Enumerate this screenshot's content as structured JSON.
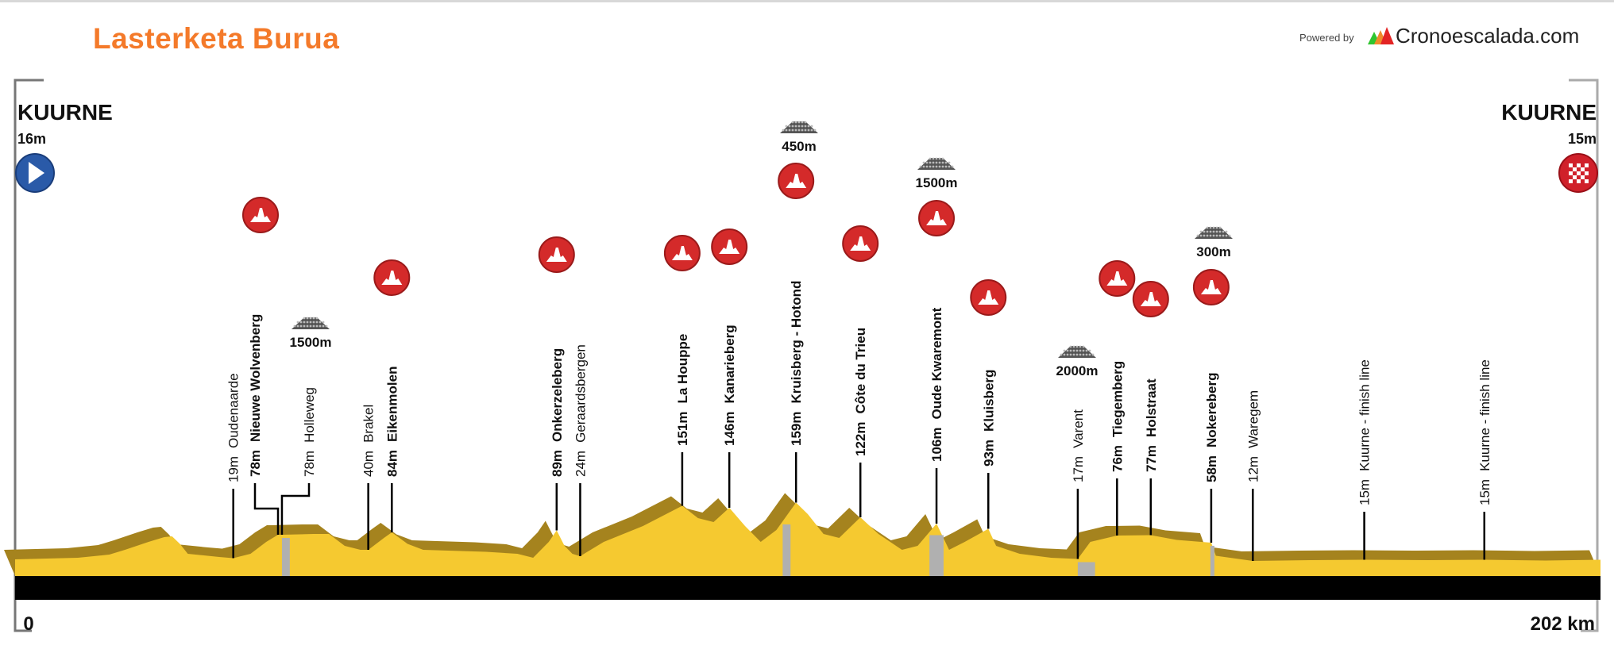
{
  "header": {
    "title": "Lasterketa Burua",
    "powered_by": "Powered by",
    "brand": "Cronoescalada.com",
    "title_color": "#f47a2a"
  },
  "start": {
    "name": "KUURNE",
    "elevation": "16m",
    "icon": "start-play-icon",
    "color": "#2a5aa8"
  },
  "finish": {
    "name": "KUURNE",
    "elevation": "15m",
    "icon": "finish-checkered-icon",
    "color": "#d0202a"
  },
  "axis": {
    "start_label": "0",
    "end_label": "202 km"
  },
  "colors": {
    "terrain": "#f5c930",
    "terrain_shadow": "#a5831e",
    "cobbles": "#b0b0b0",
    "road": "#000000",
    "climb_icon": "#d42a2a"
  },
  "chart_data": {
    "type": "area",
    "xlabel": "",
    "ylabel": "",
    "xlim": [
      0,
      202
    ],
    "x_unit": "km",
    "y_unit": "m",
    "profile": [
      [
        0,
        16
      ],
      [
        8,
        20
      ],
      [
        12,
        28
      ],
      [
        14,
        40
      ],
      [
        17,
        60
      ],
      [
        19,
        72
      ],
      [
        20,
        74
      ],
      [
        21,
        55
      ],
      [
        22,
        30
      ],
      [
        26,
        22
      ],
      [
        27.8,
        19
      ],
      [
        30,
        30
      ],
      [
        32,
        60
      ],
      [
        33.5,
        78
      ],
      [
        34,
        78
      ],
      [
        38,
        80
      ],
      [
        40,
        80
      ],
      [
        42,
        50
      ],
      [
        44,
        40
      ],
      [
        45,
        40
      ],
      [
        47,
        70
      ],
      [
        48,
        84
      ],
      [
        50,
        55
      ],
      [
        52,
        40
      ],
      [
        60,
        35
      ],
      [
        64,
        30
      ],
      [
        66,
        20
      ],
      [
        68,
        60
      ],
      [
        69,
        89
      ],
      [
        70,
        50
      ],
      [
        71,
        30
      ],
      [
        72,
        24
      ],
      [
        75,
        60
      ],
      [
        80,
        100
      ],
      [
        85,
        151
      ],
      [
        87,
        120
      ],
      [
        89,
        110
      ],
      [
        91,
        146
      ],
      [
        93,
        100
      ],
      [
        95,
        60
      ],
      [
        97,
        90
      ],
      [
        99.5,
        159
      ],
      [
        101,
        130
      ],
      [
        103,
        80
      ],
      [
        105,
        70
      ],
      [
        107.7,
        122
      ],
      [
        110,
        80
      ],
      [
        113,
        40
      ],
      [
        115,
        50
      ],
      [
        117.4,
        106
      ],
      [
        119,
        40
      ],
      [
        121,
        60
      ],
      [
        124,
        93
      ],
      [
        125,
        50
      ],
      [
        128,
        30
      ],
      [
        132,
        20
      ],
      [
        135.4,
        17
      ],
      [
        137,
        60
      ],
      [
        140.4,
        76
      ],
      [
        144.7,
        77
      ],
      [
        148,
        65
      ],
      [
        152.4,
        58
      ],
      [
        153,
        25
      ],
      [
        157.7,
        12
      ],
      [
        165,
        14
      ],
      [
        171.9,
        15
      ],
      [
        180,
        14
      ],
      [
        187.2,
        15
      ],
      [
        195,
        13
      ],
      [
        202,
        15
      ]
    ],
    "points": [
      {
        "km": 27.8,
        "elevation": "19m",
        "name": "Oudenaarde",
        "type": "town"
      },
      {
        "km": 33.5,
        "elevation": "78m",
        "name": "Nieuwe Wolvenberg",
        "type": "climb"
      },
      {
        "km": 34,
        "elevation": "78m",
        "name": "Holleweg",
        "type": "cobbles",
        "cobble_length": "1500m"
      },
      {
        "km": 45,
        "elevation": "40m",
        "name": "Brakel",
        "type": "town"
      },
      {
        "km": 48,
        "elevation": "84m",
        "name": "Eikenmolen",
        "type": "climb"
      },
      {
        "km": 69,
        "elevation": "89m",
        "name": "Onkerzeleberg",
        "type": "climb"
      },
      {
        "km": 72,
        "elevation": "24m",
        "name": "Geraardsbergen",
        "type": "town"
      },
      {
        "km": 85,
        "elevation": "151m",
        "name": "La Houppe",
        "type": "climb"
      },
      {
        "km": 91,
        "elevation": "146m",
        "name": "Kanarieberg",
        "type": "climb"
      },
      {
        "km": 99.5,
        "elevation": "159m",
        "name": "Kruisberg - Hotond",
        "type": "climb",
        "cobble_length": "450m"
      },
      {
        "km": 107.7,
        "elevation": "122m",
        "name": "Côte du Trieu",
        "type": "climb"
      },
      {
        "km": 117.4,
        "elevation": "106m",
        "name": "Oude Kwaremont",
        "type": "climb",
        "cobble_length": "1500m"
      },
      {
        "km": 124,
        "elevation": "93m",
        "name": "Kluisberg",
        "type": "climb"
      },
      {
        "km": 135.4,
        "elevation": "17m",
        "name": "Varent",
        "type": "cobbles",
        "cobble_length": "2000m"
      },
      {
        "km": 140.4,
        "elevation": "76m",
        "name": "Tiegemberg",
        "type": "climb"
      },
      {
        "km": 144.7,
        "elevation": "77m",
        "name": "Holstraat",
        "type": "climb"
      },
      {
        "km": 152.4,
        "elevation": "58m",
        "name": "Nokereberg",
        "type": "climb",
        "cobble_length": "300m"
      },
      {
        "km": 157.7,
        "elevation": "12m",
        "name": "Waregem",
        "type": "town"
      },
      {
        "km": 171.9,
        "elevation": "15m",
        "name": "Kuurne - finish line",
        "type": "town"
      },
      {
        "km": 187.2,
        "elevation": "15m",
        "name": "Kuurne - finish line",
        "type": "town"
      }
    ],
    "cobble_sectors_km": [
      [
        34,
        35
      ],
      [
        97.8,
        98.8
      ],
      [
        116.5,
        118.3
      ],
      [
        135.4,
        137.6
      ],
      [
        152.3,
        152.8
      ]
    ]
  }
}
